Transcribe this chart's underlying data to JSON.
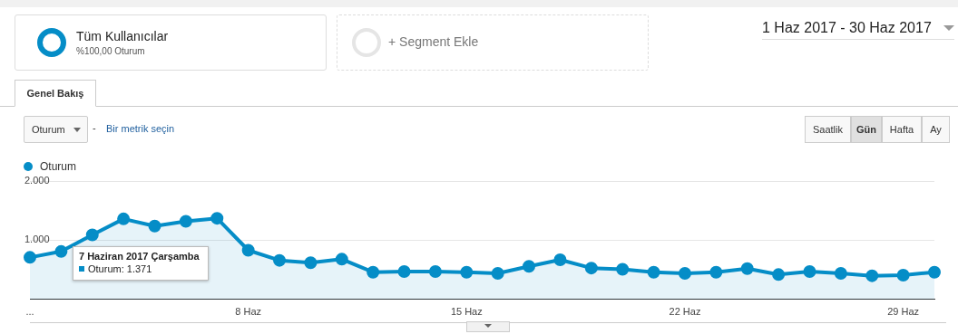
{
  "chart_data": {
    "type": "area",
    "categories": [
      "...",
      null,
      null,
      null,
      null,
      null,
      null,
      "8 Haz",
      null,
      null,
      null,
      null,
      null,
      null,
      "15 Haz",
      null,
      null,
      null,
      null,
      null,
      null,
      "22 Haz",
      null,
      null,
      null,
      null,
      null,
      null,
      "29 Haz",
      null
    ],
    "series": [
      {
        "name": "Oturum",
        "color": "#058dc7",
        "values": [
          710,
          810,
          1090,
          1360,
          1240,
          1320,
          1371,
          830,
          660,
          620,
          680,
          460,
          470,
          470,
          460,
          440,
          560,
          670,
          530,
          510,
          460,
          440,
          460,
          520,
          420,
          470,
          440,
          400,
          410,
          460
        ]
      }
    ],
    "ylim": [
      0,
      2000
    ],
    "yticks": [
      {
        "value": 0,
        "label": null
      },
      {
        "value": 1000,
        "label": "1.000"
      },
      {
        "value": 2000,
        "label": "2.000"
      }
    ],
    "grid": "y",
    "legend": "top left",
    "marker": "circle",
    "line_style": "solid",
    "annotations": [
      "Tüm Kullanıcılar",
      "%100,00 Oturum",
      "+ Segment Ekle",
      "1 Haz 2017 - 30 Haz 2017",
      "Genel Bakış",
      "Oturum",
      "-",
      "Bir metrik seçin",
      "Saatlik",
      "Gün",
      "Hafta",
      "Ay",
      "7 Haziran 2017 Çarşamba",
      "Oturum: 1.371"
    ]
  }
}
